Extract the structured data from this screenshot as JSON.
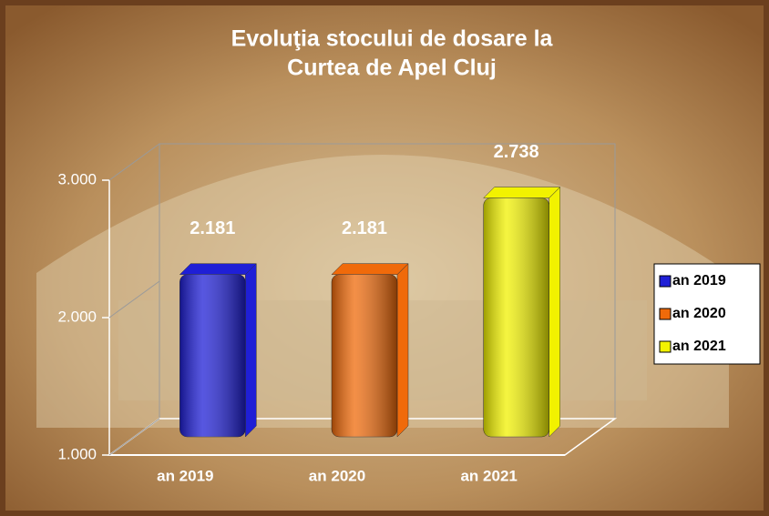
{
  "chart_data": {
    "type": "bar3d",
    "title": [
      "Evoluţia stocului de dosare la",
      "Curtea de Apel Cluj"
    ],
    "categories": [
      "an 2019",
      "an 2020",
      "an 2021"
    ],
    "values": [
      2181,
      2181,
      2738
    ],
    "value_labels": [
      "2.181",
      "2.181",
      "2.738"
    ],
    "colors": [
      "#1f1fd6",
      "#f06a0a",
      "#f2f200"
    ],
    "ylim": [
      1000,
      3000
    ],
    "yticks": [
      {
        "value": 1000,
        "label": "1.000"
      },
      {
        "value": 2000,
        "label": "2.000"
      },
      {
        "value": 3000,
        "label": "3.000"
      }
    ],
    "legend": "right"
  }
}
